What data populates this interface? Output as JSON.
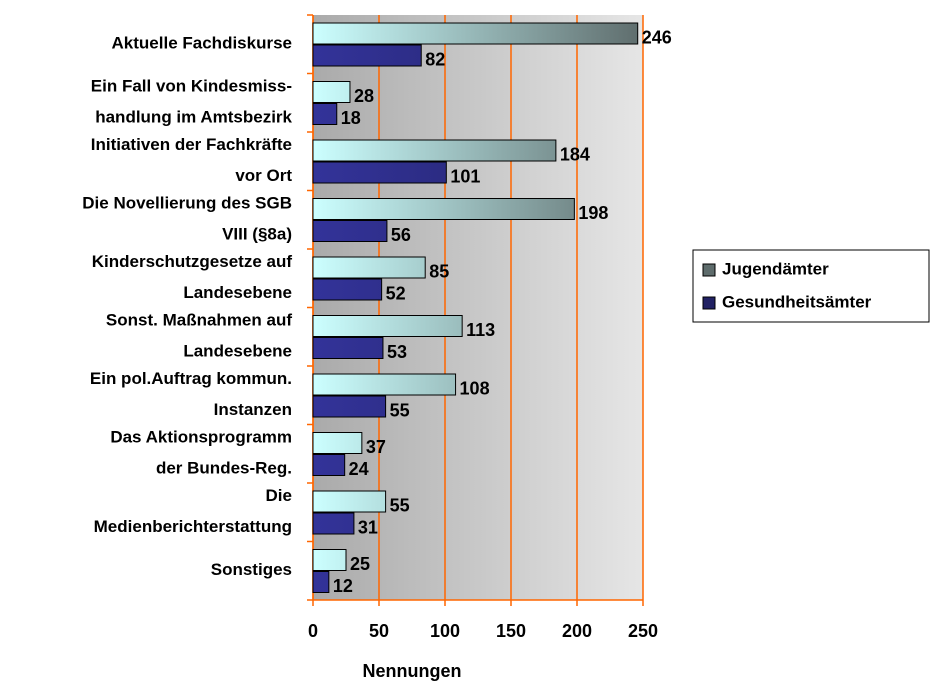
{
  "chart_data": {
    "type": "barh",
    "categories": [
      "Aktuelle Fachdiskurse",
      "Ein Fall von Kindesmiss-\nhandlung im Amtsbezirk",
      "Initiativen der Fachkräfte\nvor Ort",
      "Die Novellierung des SGB\nVIII (§8a)",
      "Kinderschutzgesetze auf\nLandesebene",
      "Sonst. Maßnahmen auf\nLandesebene",
      "Ein pol.Auftrag kommun.\nInstanzen",
      "Das Aktionsprogramm\nder Bundes-Reg.",
      "Die\nMedienberichterstattung",
      "Sonstiges"
    ],
    "series": [
      {
        "name": "Jugendämter",
        "color": "#ccffff",
        "values": [
          246,
          28,
          184,
          198,
          85,
          113,
          108,
          37,
          55,
          25
        ]
      },
      {
        "name": "Gesundheitsämter",
        "color": "#333399",
        "values": [
          82,
          18,
          101,
          56,
          52,
          53,
          55,
          24,
          31,
          12
        ]
      }
    ],
    "xlabel": "Nennungen",
    "xlim": [
      0,
      250
    ],
    "xticks": [
      0,
      50,
      100,
      150,
      200,
      250
    ],
    "grid": true,
    "grid_color": "#ff6600",
    "legend": "right"
  }
}
